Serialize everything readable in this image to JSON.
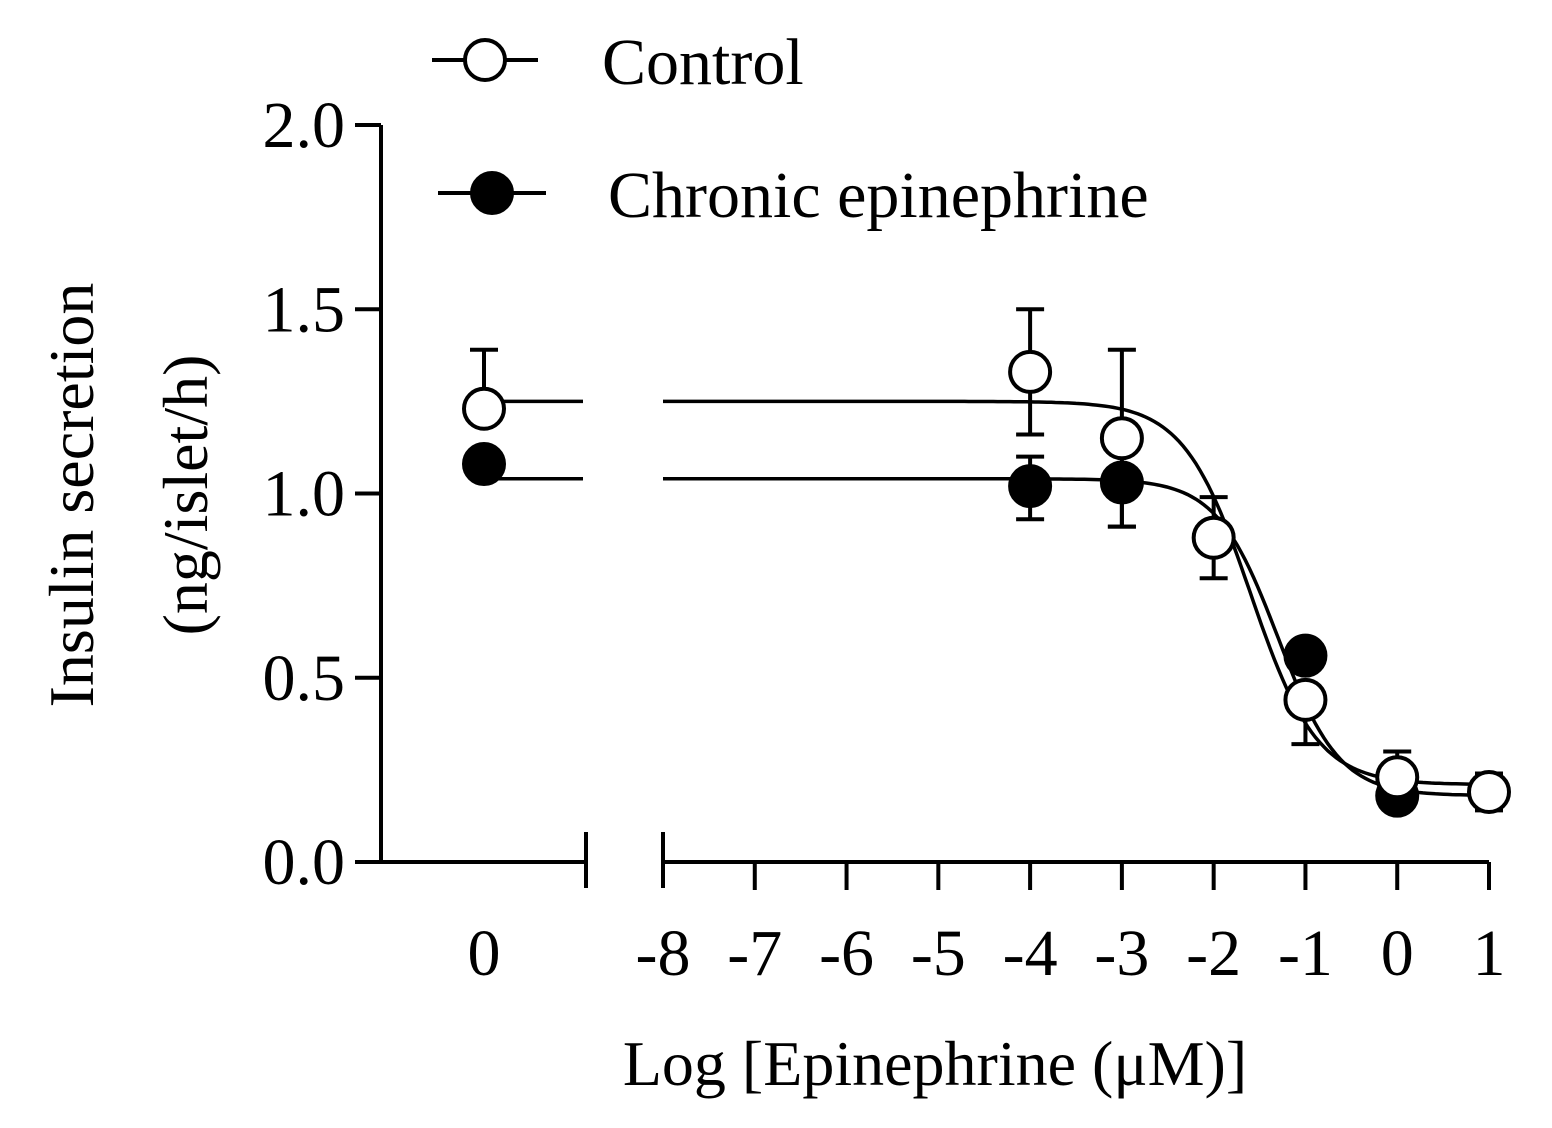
{
  "chart_data": {
    "type": "scatter",
    "ylabel_line1": "Insulin secretion",
    "ylabel_line2": "(ng/islet/h)",
    "xlabel": "Log [Epinephrine (μM)]",
    "ylim": [
      0,
      2.0
    ],
    "y_ticks": [
      "0.0",
      "0.5",
      "1.0",
      "1.5",
      "2.0"
    ],
    "x_break": true,
    "x_left_segment": {
      "ticks": [
        "0"
      ]
    },
    "x_right_segment": {
      "xlim": [
        -8,
        1
      ],
      "ticks": [
        "-8",
        "-7",
        "-6",
        "-5",
        "-4",
        "-3",
        "-2",
        "-1",
        "0",
        "1"
      ]
    },
    "legend_placement": "top-center",
    "series": [
      {
        "name": "Control",
        "marker": "open-circle",
        "baseline": {
          "x_label": "0",
          "y": 1.23,
          "err_upper": 0.16,
          "err_lower": 0.0
        },
        "x": [
          -4,
          -3,
          -2,
          -1,
          0,
          1
        ],
        "y": [
          1.33,
          1.15,
          0.88,
          0.44,
          0.23,
          0.19
        ],
        "err_upper": [
          0.17,
          0.24,
          0.11,
          0.0,
          0.07,
          0.05
        ],
        "err_lower": [
          0.17,
          0.24,
          0.11,
          0.12,
          0.0,
          0.05
        ],
        "fit": {
          "top": 1.25,
          "bottom": 0.21,
          "log_ic50": -1.6,
          "hill": 1.2
        }
      },
      {
        "name": "Chronic epinephrine",
        "marker": "filled-circle",
        "baseline": {
          "x_label": "0",
          "y": 1.08,
          "err_upper": 0.0,
          "err_lower": 0.0
        },
        "x": [
          -4,
          -3,
          -1,
          0
        ],
        "y": [
          1.02,
          1.03,
          0.56,
          0.18
        ],
        "err_upper": [
          0.08,
          0.0,
          0.0,
          0.0
        ],
        "err_lower": [
          0.09,
          0.12,
          0.0,
          0.0
        ],
        "fit": {
          "top": 1.04,
          "bottom": 0.18,
          "log_ic50": -1.3,
          "hill": 1.3
        }
      }
    ]
  }
}
